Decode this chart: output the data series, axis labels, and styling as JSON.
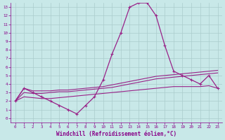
{
  "xlabel": "Windchill (Refroidissement éolien,°C)",
  "x": [
    0,
    1,
    2,
    3,
    4,
    5,
    6,
    7,
    8,
    9,
    10,
    11,
    12,
    13,
    14,
    15,
    16,
    17,
    18,
    19,
    20,
    21,
    22,
    23
  ],
  "line_main": [
    2,
    3.5,
    3.0,
    2.5,
    2.0,
    1.5,
    1.0,
    0.5,
    1.5,
    2.5,
    4.5,
    7.5,
    10.0,
    13.0,
    13.5,
    13.5,
    12.0,
    8.5,
    5.5,
    5.0,
    4.5,
    4.0,
    5.0,
    3.5
  ],
  "line_upper": [
    2,
    3.5,
    3.2,
    3.2,
    3.2,
    3.3,
    3.3,
    3.4,
    3.5,
    3.6,
    3.7,
    3.9,
    4.1,
    4.3,
    4.5,
    4.7,
    4.9,
    5.0,
    5.1,
    5.2,
    5.3,
    5.4,
    5.5,
    5.6
  ],
  "line_mid": [
    2,
    3.0,
    2.9,
    2.9,
    3.0,
    3.1,
    3.1,
    3.2,
    3.3,
    3.4,
    3.5,
    3.6,
    3.8,
    4.0,
    4.2,
    4.4,
    4.6,
    4.7,
    4.8,
    4.9,
    5.0,
    5.1,
    5.2,
    5.3
  ],
  "line_lower": [
    2,
    2.5,
    2.4,
    2.3,
    2.3,
    2.4,
    2.5,
    2.6,
    2.7,
    2.8,
    2.9,
    3.0,
    3.1,
    3.2,
    3.3,
    3.4,
    3.5,
    3.6,
    3.7,
    3.7,
    3.7,
    3.7,
    3.8,
    3.5
  ],
  "line_color": "#992288",
  "bg_color": "#c8e8e8",
  "grid_color": "#aacccc",
  "text_color": "#880088",
  "ylim": [
    0,
    13
  ],
  "xlim": [
    0,
    23
  ],
  "yticks": [
    0,
    1,
    2,
    3,
    4,
    5,
    6,
    7,
    8,
    9,
    10,
    11,
    12,
    13
  ],
  "xticks": [
    0,
    1,
    2,
    3,
    4,
    5,
    6,
    7,
    8,
    9,
    10,
    11,
    12,
    13,
    14,
    15,
    16,
    17,
    18,
    19,
    20,
    21,
    22,
    23
  ]
}
